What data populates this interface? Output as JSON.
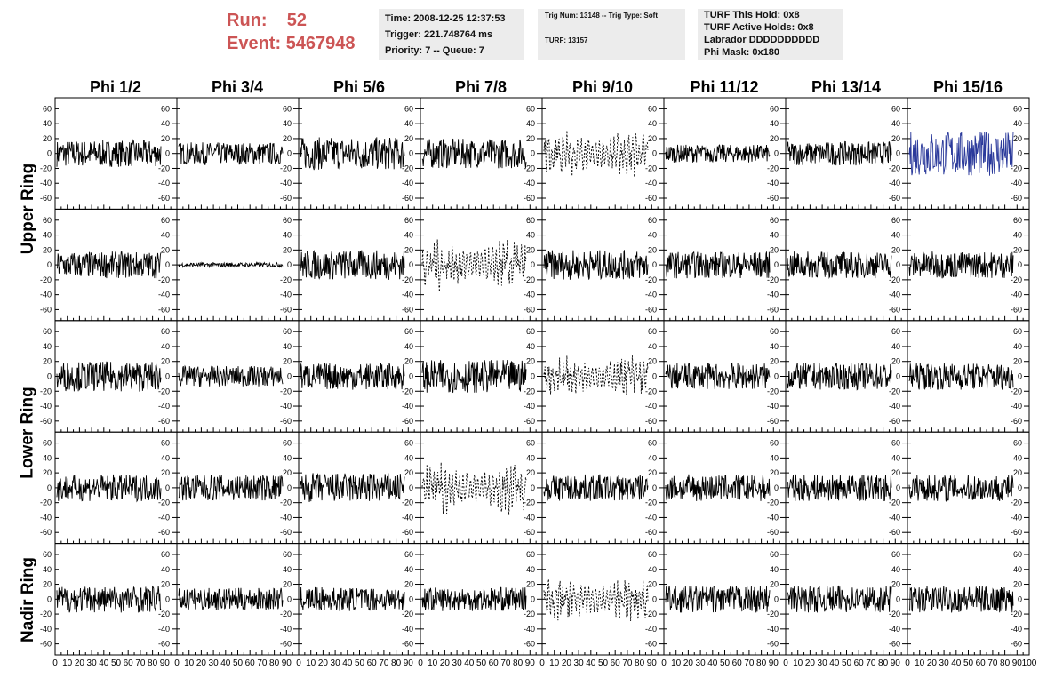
{
  "header": {
    "run_label": "Run:",
    "run_value": "52",
    "event_label": "Event:",
    "event_value": "5467948"
  },
  "info1": {
    "time": "Time: 2008-12-25 12:37:53",
    "trigger": "Trigger: 221.748764 ms",
    "priority": "Priority: 7 -- Queue: 7"
  },
  "info2": {
    "trig": "Trig Num: 13148 -- Trig Type: Soft",
    "turf": "TURF: 13157"
  },
  "info3": {
    "hold": "TURF This Hold: 0x8",
    "active": "TURF Active Holds: 0x8",
    "labrador": "Labrador DDDDDDDDDD",
    "phimask": "Phi Mask: 0x180"
  },
  "columns": [
    "Phi 1/2",
    "Phi 3/4",
    "Phi 5/6",
    "Phi 7/8",
    "Phi 9/10",
    "Phi 11/12",
    "Phi 13/14",
    "Phi 15/16"
  ],
  "rings": [
    "Upper Ring",
    "Lower Ring",
    "Nadir Ring"
  ],
  "colors": {
    "trace": "#000000",
    "highlight_trace": "#2b3a9b",
    "run_text": "#cc5555",
    "info_bg": "#ececec"
  },
  "chart_data": {
    "type": "line",
    "grid": false,
    "ylim": [
      -70,
      70
    ],
    "xlim": [
      0,
      100
    ],
    "y_ticks": [
      -60,
      -40,
      -20,
      0,
      20,
      40,
      60
    ],
    "x_ticks": [
      0,
      10,
      20,
      30,
      40,
      50,
      60,
      70,
      80,
      90,
      100
    ],
    "panels_rows": 5,
    "panels_cols": 8,
    "waveform_amplitudes": [
      [
        18,
        15,
        22,
        20,
        20,
        12,
        16,
        30
      ],
      [
        18,
        3,
        20,
        22,
        20,
        18,
        18,
        18
      ],
      [
        20,
        14,
        18,
        22,
        18,
        18,
        18,
        18
      ],
      [
        18,
        18,
        20,
        22,
        18,
        18,
        18,
        18
      ],
      [
        18,
        15,
        16,
        16,
        20,
        18,
        18,
        18
      ]
    ],
    "dashed_panels": [
      [
        0,
        4
      ],
      [
        1,
        3
      ],
      [
        2,
        4
      ],
      [
        3,
        3
      ],
      [
        4,
        4
      ]
    ],
    "highlight_panel": [
      0,
      7
    ]
  }
}
